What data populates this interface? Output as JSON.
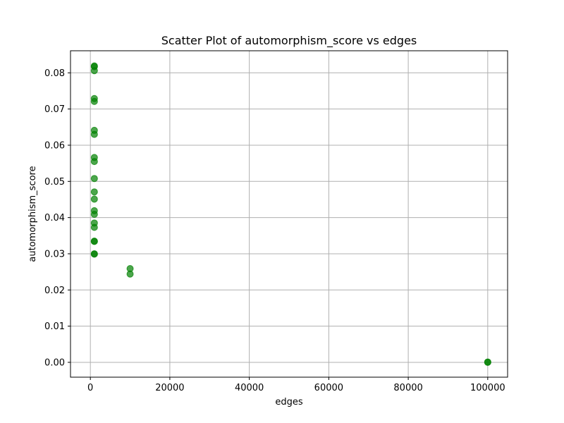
{
  "chart_data": {
    "type": "scatter",
    "title": "Scatter Plot of automorphism_score vs edges",
    "xlabel": "edges",
    "ylabel": "automorphism_score",
    "xlim": [
      -5000,
      105000
    ],
    "ylim": [
      -0.0041,
      0.0861
    ],
    "xticks": [
      0,
      20000,
      40000,
      60000,
      80000,
      100000
    ],
    "yticks": [
      "0.00",
      "0.01",
      "0.02",
      "0.03",
      "0.04",
      "0.05",
      "0.06",
      "0.07",
      "0.08"
    ],
    "grid": true,
    "color": "#008000",
    "marker_alpha": 0.7,
    "series": [
      {
        "x": [
          1000,
          1000,
          1000,
          1000,
          1000,
          1000,
          1000,
          1000,
          1000,
          1000,
          1000,
          1000,
          1000,
          1000,
          1000,
          1000,
          1000,
          1000,
          1000,
          1000,
          10000,
          10000,
          100000,
          100000
        ],
        "y": [
          0.0819,
          0.0817,
          0.0806,
          0.0729,
          0.0721,
          0.0641,
          0.063,
          0.0566,
          0.0555,
          0.0508,
          0.0471,
          0.0451,
          0.0419,
          0.0409,
          0.0385,
          0.0373,
          0.0335,
          0.0334,
          0.03,
          0.0299,
          0.0259,
          0.0244,
          0.0001,
          0.0
        ]
      }
    ]
  }
}
